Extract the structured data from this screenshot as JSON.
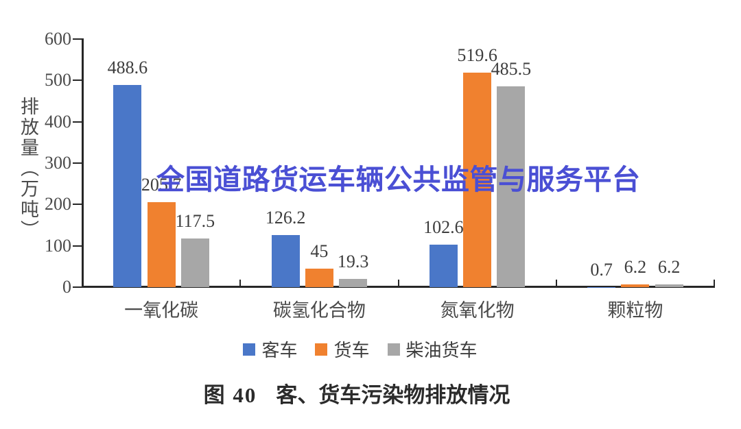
{
  "watermark": {
    "text": "全国道路货运车辆公共监管与服务平台",
    "color": "#4a4fd4"
  },
  "caption": {
    "figure_label": "图 40",
    "title": "客、货车污染物排放情况"
  },
  "chart_data": {
    "type": "bar",
    "title": "",
    "xlabel": "",
    "ylabel": "排放量（万吨）",
    "ylim": [
      0,
      600
    ],
    "yticks": [
      0,
      100,
      200,
      300,
      400,
      500,
      600
    ],
    "grid": false,
    "legend_position": "bottom",
    "categories": [
      "一氧化碳",
      "碳氢化合物",
      "氮氧化物",
      "颗粒物"
    ],
    "series": [
      {
        "name": "客车",
        "color": "#4a77c8",
        "values": [
          488.6,
          126.2,
          102.6,
          0.7
        ],
        "labels": [
          "488.6",
          "126.2",
          "102.6",
          "0.7"
        ]
      },
      {
        "name": "货车",
        "color": "#f0812f",
        "values": [
          205.7,
          45,
          519.6,
          6.2
        ],
        "labels": [
          "205.7",
          "45",
          "519.6",
          "6.2"
        ]
      },
      {
        "name": "柴油货车",
        "color": "#a7a7a7",
        "values": [
          117.5,
          19.3,
          485.5,
          6.2
        ],
        "labels": [
          "117.5",
          "19.3",
          "485.5",
          "6.2"
        ]
      }
    ]
  }
}
